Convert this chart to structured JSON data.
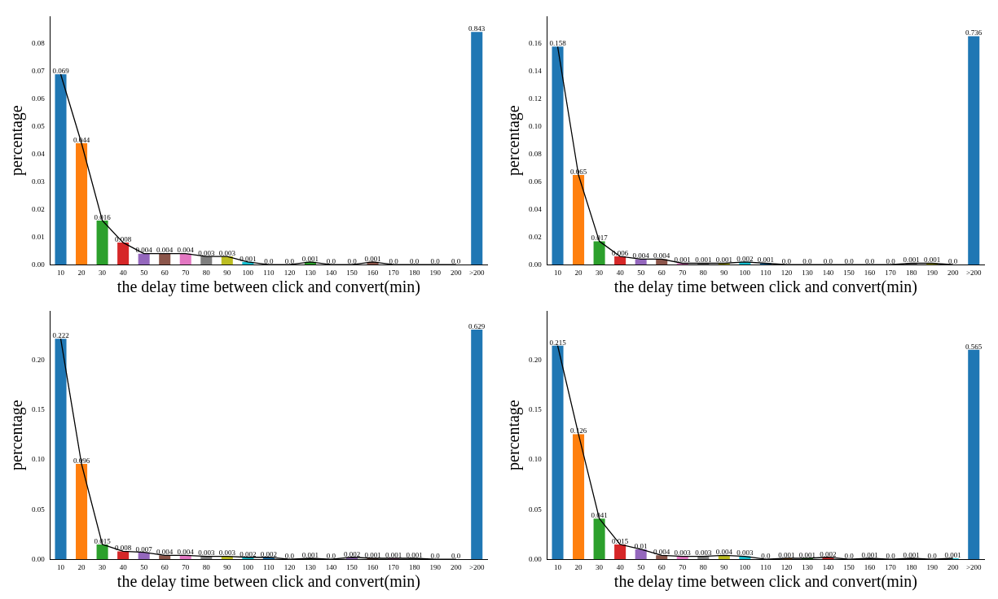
{
  "chart_data": [
    {
      "type": "bar",
      "xlabel": "the delay time between click and convert(min)",
      "ylabel": "percentage",
      "categories": [
        "10",
        "20",
        "30",
        "40",
        "50",
        "60",
        "70",
        "80",
        "90",
        "100",
        "110",
        "120",
        "130",
        "140",
        "150",
        "160",
        "170",
        "180",
        "190",
        "200",
        ">200"
      ],
      "ylim": [
        0,
        0.09
      ],
      "yticks": [
        {
          "value": 0,
          "label": "0.00"
        },
        {
          "value": 0.01,
          "label": "0.01"
        },
        {
          "value": 0.02,
          "label": "0.02"
        },
        {
          "value": 0.03,
          "label": "0.03"
        },
        {
          "value": 0.04,
          "label": "0.04"
        },
        {
          "value": 0.05,
          "label": "0.05"
        },
        {
          "value": 0.06,
          "label": "0.06"
        },
        {
          "value": 0.07,
          "label": "0.07"
        },
        {
          "value": 0.08,
          "label": "0.08"
        }
      ],
      "y2lim": [
        0,
        0.9
      ],
      "grid": false,
      "series": [
        {
          "colors": [
            "#1f77b4",
            "#ff7f0e",
            "#2ca02c",
            "#d62728",
            "#9467bd",
            "#8c564b",
            "#e377c2",
            "#7f7f7f",
            "#bcbd22",
            "#17becf",
            "#1f77b4",
            "#ff7f0e",
            "#2ca02c",
            "#d62728",
            "#9467bd",
            "#8c564b",
            "#e377c2",
            "#7f7f7f",
            "#bcbd22",
            "#17becf",
            "#1f77b4"
          ],
          "values": [
            0.069,
            0.044,
            0.016,
            0.008,
            0.004,
            0.004,
            0.004,
            0.003,
            0.003,
            0.001,
            0.0,
            0.0,
            0.001,
            0.0,
            0.0,
            0.001,
            0.0,
            0.0,
            0.0,
            0.0,
            null
          ],
          "value_labels": [
            "0.069",
            "0.044",
            "0.016",
            "0.008",
            "0.004",
            "0.004",
            "0.004",
            "0.003",
            "0.003",
            "0.001",
            "0.0",
            "0.0",
            "0.001",
            "0.0",
            "0.0",
            "0.001",
            "0.0",
            "0.0",
            "0.0",
            "0.0",
            null
          ]
        },
        {
          "type": "bar",
          "axis": "y2",
          "color": "#1f77b4",
          "values": [
            null,
            null,
            null,
            null,
            null,
            null,
            null,
            null,
            null,
            null,
            null,
            null,
            null,
            null,
            null,
            null,
            null,
            null,
            null,
            null,
            0.843
          ],
          "data_labels": true
        },
        {
          "type": "line",
          "color": "#000000",
          "values": [
            0.069,
            0.044,
            0.016,
            0.008,
            0.004,
            0.004,
            0.004,
            0.003,
            0.003,
            0.001,
            0.0,
            0.0,
            0.001,
            0.0,
            0.0,
            0.001,
            0.0,
            0.0,
            0.0,
            0.0,
            null
          ]
        }
      ]
    },
    {
      "type": "bar",
      "xlabel": "the delay time between click and convert(min)",
      "ylabel": "percentage",
      "categories": [
        "10",
        "20",
        "30",
        "40",
        "50",
        "60",
        "70",
        "80",
        "90",
        "100",
        "110",
        "120",
        "130",
        "140",
        "150",
        "160",
        "170",
        "180",
        "190",
        "200",
        ">200"
      ],
      "ylim": [
        0,
        0.18
      ],
      "yticks": [
        {
          "value": 0,
          "label": "0.00"
        },
        {
          "value": 0.02,
          "label": "0.02"
        },
        {
          "value": 0.04,
          "label": "0.04"
        },
        {
          "value": 0.06,
          "label": "0.06"
        },
        {
          "value": 0.08,
          "label": "0.08"
        },
        {
          "value": 0.1,
          "label": "0.10"
        },
        {
          "value": 0.12,
          "label": "0.12"
        },
        {
          "value": 0.14,
          "label": "0.14"
        },
        {
          "value": 0.16,
          "label": "0.16"
        }
      ],
      "y2lim": [
        0,
        0.8
      ],
      "grid": false,
      "series": [
        {
          "colors": [
            "#1f77b4",
            "#ff7f0e",
            "#2ca02c",
            "#d62728",
            "#9467bd",
            "#8c564b",
            "#e377c2",
            "#7f7f7f",
            "#bcbd22",
            "#17becf",
            "#1f77b4",
            "#ff7f0e",
            "#2ca02c",
            "#d62728",
            "#9467bd",
            "#8c564b",
            "#e377c2",
            "#7f7f7f",
            "#bcbd22",
            "#17becf",
            "#1f77b4"
          ],
          "values": [
            0.158,
            0.065,
            0.017,
            0.006,
            0.004,
            0.004,
            0.001,
            0.001,
            0.001,
            0.002,
            0.001,
            0.0,
            0.0,
            0.0,
            0.0,
            0.0,
            0.0,
            0.001,
            0.001,
            0.0,
            null
          ],
          "value_labels": [
            "0.158",
            "0.065",
            "0.017",
            "0.006",
            "0.004",
            "0.004",
            "0.001",
            "0.001",
            "0.001",
            "0.002",
            "0.001",
            "0.0",
            "0.0",
            "0.0",
            "0.0",
            "0.0",
            "0.0",
            "0.001",
            "0.001",
            "0.0",
            null
          ]
        },
        {
          "type": "bar",
          "axis": "y2",
          "color": "#1f77b4",
          "values": [
            null,
            null,
            null,
            null,
            null,
            null,
            null,
            null,
            null,
            null,
            null,
            null,
            null,
            null,
            null,
            null,
            null,
            null,
            null,
            null,
            0.736
          ],
          "data_labels": true
        },
        {
          "type": "line",
          "color": "#000000",
          "values": [
            0.158,
            0.065,
            0.017,
            0.006,
            0.004,
            0.004,
            0.001,
            0.001,
            0.001,
            0.002,
            0.001,
            0.0,
            0.0,
            0.0,
            0.0,
            0.0,
            0.0,
            0.001,
            0.001,
            0.0,
            null
          ]
        }
      ]
    },
    {
      "type": "bar",
      "xlabel": "the delay time between click and convert(min)",
      "ylabel": "percentage",
      "categories": [
        "10",
        "20",
        "30",
        "40",
        "50",
        "60",
        "70",
        "80",
        "90",
        "100",
        "110",
        "120",
        "130",
        "140",
        "150",
        "160",
        "170",
        "180",
        "190",
        "200",
        ">200"
      ],
      "ylim": [
        0,
        0.25
      ],
      "yticks": [
        {
          "value": 0,
          "label": "0.00"
        },
        {
          "value": 0.05,
          "label": "0.05"
        },
        {
          "value": 0.1,
          "label": "0.10"
        },
        {
          "value": 0.15,
          "label": "0.15"
        },
        {
          "value": 0.2,
          "label": "0.20"
        }
      ],
      "y2lim": [
        0,
        0.68
      ],
      "grid": false,
      "series": [
        {
          "colors": [
            "#1f77b4",
            "#ff7f0e",
            "#2ca02c",
            "#d62728",
            "#9467bd",
            "#8c564b",
            "#e377c2",
            "#7f7f7f",
            "#bcbd22",
            "#17becf",
            "#1f77b4",
            "#ff7f0e",
            "#2ca02c",
            "#d62728",
            "#9467bd",
            "#8c564b",
            "#e377c2",
            "#7f7f7f",
            "#bcbd22",
            "#17becf",
            "#1f77b4"
          ],
          "values": [
            0.222,
            0.096,
            0.015,
            0.008,
            0.007,
            0.004,
            0.004,
            0.003,
            0.003,
            0.002,
            0.002,
            0.0,
            0.001,
            0.0,
            0.002,
            0.001,
            0.001,
            0.001,
            0.0,
            0.0,
            null
          ],
          "value_labels": [
            "0.222",
            "0.096",
            "0.015",
            "0.008",
            "0.007",
            "0.004",
            "0.004",
            "0.003",
            "0.003",
            "0.002",
            "0.002",
            "0.0",
            "0.001",
            "0.0",
            "0.002",
            "0.001",
            "0.001",
            "0.001",
            "0.0",
            "0.0",
            null
          ]
        },
        {
          "type": "bar",
          "axis": "y2",
          "color": "#1f77b4",
          "values": [
            null,
            null,
            null,
            null,
            null,
            null,
            null,
            null,
            null,
            null,
            null,
            null,
            null,
            null,
            null,
            null,
            null,
            null,
            null,
            null,
            0.629
          ],
          "data_labels": true
        },
        {
          "type": "line",
          "color": "#000000",
          "values": [
            0.222,
            0.096,
            0.015,
            0.008,
            0.007,
            0.004,
            0.004,
            0.003,
            0.003,
            0.002,
            0.002,
            0.0,
            0.001,
            0.0,
            0.002,
            0.001,
            0.001,
            0.001,
            0.0,
            0.0,
            null
          ]
        }
      ]
    },
    {
      "type": "bar",
      "xlabel": "the delay time between click and convert(min)",
      "ylabel": "percentage",
      "categories": [
        "10",
        "20",
        "30",
        "40",
        "50",
        "60",
        "70",
        "80",
        "90",
        "100",
        "110",
        "120",
        "130",
        "140",
        "150",
        "160",
        "170",
        "180",
        "190",
        "200",
        ">200"
      ],
      "ylim": [
        0,
        0.25
      ],
      "yticks": [
        {
          "value": 0,
          "label": "0.00"
        },
        {
          "value": 0.05,
          "label": "0.05"
        },
        {
          "value": 0.1,
          "label": "0.10"
        },
        {
          "value": 0.15,
          "label": "0.15"
        },
        {
          "value": 0.2,
          "label": "0.20"
        }
      ],
      "y2lim": [
        0,
        0.67
      ],
      "grid": false,
      "series": [
        {
          "colors": [
            "#1f77b4",
            "#ff7f0e",
            "#2ca02c",
            "#d62728",
            "#9467bd",
            "#8c564b",
            "#e377c2",
            "#7f7f7f",
            "#bcbd22",
            "#17becf",
            "#1f77b4",
            "#ff7f0e",
            "#2ca02c",
            "#d62728",
            "#9467bd",
            "#8c564b",
            "#e377c2",
            "#7f7f7f",
            "#bcbd22",
            "#17becf",
            "#1f77b4"
          ],
          "values": [
            0.215,
            0.126,
            0.041,
            0.015,
            0.01,
            0.004,
            0.003,
            0.003,
            0.004,
            0.003,
            0.0,
            0.001,
            0.001,
            0.002,
            0.0,
            0.001,
            0.0,
            0.001,
            0.0,
            0.001,
            null
          ],
          "value_labels": [
            "0.215",
            "0.126",
            "0.041",
            "0.015",
            "0.01",
            "0.004",
            "0.003",
            "0.003",
            "0.004",
            "0.003",
            "0.0",
            "0.001",
            "0.001",
            "0.002",
            "0.0",
            "0.001",
            "0.0",
            "0.001",
            "0.0",
            "0.001",
            null
          ]
        },
        {
          "type": "bar",
          "axis": "y2",
          "color": "#1f77b4",
          "values": [
            null,
            null,
            null,
            null,
            null,
            null,
            null,
            null,
            null,
            null,
            null,
            null,
            null,
            null,
            null,
            null,
            null,
            null,
            null,
            null,
            0.565
          ],
          "data_labels": true
        },
        {
          "type": "line",
          "color": "#000000",
          "values": [
            0.215,
            0.126,
            0.041,
            0.015,
            0.01,
            0.004,
            0.003,
            0.003,
            0.004,
            0.003,
            0.0,
            0.001,
            0.001,
            0.002,
            0.0,
            0.001,
            0.0,
            0.001,
            0.0,
            0.001,
            null
          ]
        }
      ]
    }
  ]
}
